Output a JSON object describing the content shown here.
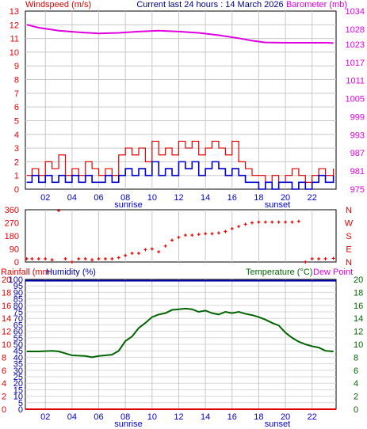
{
  "header": {
    "left": "Windspeed (m/s)",
    "center": "Current last 24 hours : 14 March 2026",
    "right": "Barometer (mb)"
  },
  "colors": {
    "wind": "#e00000",
    "gust": "#0000cc",
    "barometer": "#e000e0",
    "direction": "#e00000",
    "rain": "#e00000",
    "humidity": "#0000aa",
    "temperature": "#006400",
    "dewpoint": "#e000e0",
    "grid": "#000000"
  },
  "x_axis": {
    "ticks": [
      "02",
      "04",
      "06",
      "08",
      "10",
      "12",
      "14",
      "16",
      "18",
      "20",
      "22"
    ],
    "sunrise": "sunrise",
    "sunset": "sunset"
  },
  "panel3_header": {
    "rainfall": "Rainfall (mm",
    "humidity": "Humidity (%)",
    "temperature": "Temperature (°C)",
    "dewpoint": "Dew Point"
  },
  "chart_data": [
    {
      "type": "line",
      "title": "Windspeed (m/s) / Barometer (mb)",
      "x_range": [
        0.5,
        23.8
      ],
      "y_left": {
        "label": "Windspeed (m/s)",
        "ticks": [
          "0",
          "1",
          "2",
          "3",
          "4",
          "5",
          "6",
          "7",
          "8",
          "9",
          "10",
          "11",
          "12",
          "13"
        ],
        "ylim": [
          0,
          13
        ]
      },
      "y_right": {
        "label": "Barometer (mb)",
        "ticks": [
          "975",
          "981",
          "987",
          "993",
          "999",
          "1005",
          "1011",
          "1017",
          "1023",
          "1028",
          "1034"
        ],
        "ylim": [
          975,
          1034
        ]
      },
      "series": [
        {
          "name": "Barometer (mb)",
          "axis": "right",
          "x": [
            0.6,
            1.5,
            3,
            4.5,
            6,
            7.5,
            9,
            10.5,
            12,
            13.5,
            15,
            16.5,
            17.5,
            18.5,
            20,
            21.5,
            23,
            23.6
          ],
          "y": [
            1029.5,
            1028.5,
            1027.5,
            1027,
            1026.6,
            1026.8,
            1027.2,
            1027.5,
            1027.2,
            1026.8,
            1026,
            1025,
            1024.2,
            1023.6,
            1023.5,
            1023.5,
            1023.5,
            1023.4
          ]
        },
        {
          "name": "Windspeed",
          "axis": "left",
          "x": [
            0.6,
            1,
            1.5,
            2,
            2.5,
            3,
            3.5,
            4,
            4.5,
            5,
            5.5,
            6,
            6.5,
            7,
            7.5,
            8,
            8.5,
            9,
            9.5,
            10,
            10.5,
            11,
            11.5,
            12,
            12.5,
            13,
            13.5,
            14,
            14.5,
            15,
            15.5,
            16,
            16.5,
            17,
            17.5,
            18,
            18.5,
            19,
            19.5,
            20,
            20.5,
            21,
            21.5,
            22,
            22.5,
            23,
            23.6
          ],
          "y": [
            1,
            1.5,
            1,
            2,
            1.5,
            2.5,
            1,
            1.5,
            1,
            2,
            1.5,
            1,
            1.5,
            1,
            2.5,
            3,
            2.5,
            3,
            2,
            3.5,
            2.5,
            3,
            2.5,
            3.5,
            3,
            3.5,
            2.5,
            3,
            3.5,
            3,
            2.5,
            3.5,
            2,
            1.5,
            1,
            1,
            0.5,
            1,
            0.5,
            1,
            1.5,
            1,
            0.5,
            1,
            1.5,
            1,
            1.5
          ]
        },
        {
          "name": "Average wind",
          "axis": "left",
          "x": [
            0.6,
            1,
            1.5,
            2,
            2.5,
            3,
            3.5,
            4,
            4.5,
            5,
            5.5,
            6,
            6.5,
            7,
            7.5,
            8,
            8.5,
            9,
            9.5,
            10,
            10.5,
            11,
            11.5,
            12,
            12.5,
            13,
            13.5,
            14,
            14.5,
            15,
            15.5,
            16,
            16.5,
            17,
            17.5,
            18,
            18.5,
            19,
            19.5,
            20,
            20.5,
            21,
            21.5,
            22,
            22.5,
            23,
            23.6
          ],
          "y": [
            0.5,
            1,
            0.5,
            1,
            0.5,
            1,
            0.5,
            1,
            0.5,
            1,
            0.5,
            0.5,
            1,
            0.5,
            1,
            1.5,
            1,
            1.5,
            1,
            2,
            1,
            1.5,
            1,
            2,
            1.5,
            2,
            1,
            1.5,
            2,
            1.5,
            1,
            1.5,
            1,
            0.5,
            0.5,
            0,
            0.5,
            0,
            0.5,
            0.5,
            0,
            0.5,
            0,
            0.5,
            1,
            0.5,
            1
          ]
        }
      ]
    },
    {
      "type": "scatter",
      "title": "Wind direction",
      "x_range": [
        0.5,
        23.8
      ],
      "y_left": {
        "ticks": [
          "0",
          "90",
          "180",
          "270",
          "360"
        ],
        "ylim": [
          0,
          360
        ]
      },
      "y_right": {
        "ticks": [
          "N",
          "E",
          "S",
          "W",
          "N"
        ]
      },
      "series": [
        {
          "name": "Wind direction",
          "x": [
            0.6,
            1,
            1.5,
            2,
            2.5,
            3,
            3.5,
            4,
            4.5,
            5,
            5.5,
            6,
            6.5,
            7,
            7.5,
            8,
            8.5,
            9,
            9.5,
            10,
            10.5,
            11,
            11.5,
            12,
            12.5,
            13,
            13.5,
            14,
            14.5,
            15,
            15.5,
            16,
            16.5,
            17,
            17.5,
            18,
            18.5,
            19,
            19.5,
            20,
            20.5,
            21,
            21.5,
            22,
            22.5,
            23,
            23.6
          ],
          "y": [
            22,
            22,
            22,
            22,
            15,
            355,
            22,
            0,
            22,
            22,
            15,
            22,
            22,
            22,
            30,
            45,
            60,
            60,
            85,
            90,
            70,
            110,
            150,
            170,
            185,
            185,
            190,
            195,
            195,
            200,
            210,
            230,
            245,
            260,
            270,
            275,
            275,
            275,
            275,
            275,
            275,
            280,
            0,
            22,
            22,
            22,
            25
          ]
        }
      ]
    },
    {
      "type": "line",
      "title": "Rainfall / Humidity / Temperature",
      "x_range": [
        0.5,
        23.8
      ],
      "y_far_left": {
        "label": "Rainfall (mm",
        "ticks": [
          "0",
          "2",
          "4",
          "6",
          "8",
          "10",
          "12",
          "14",
          "16",
          "18",
          "20"
        ],
        "ylim": [
          0,
          20
        ]
      },
      "y_left": {
        "label": "Humidity (%)",
        "ticks": [
          "0",
          "5",
          "10",
          "15",
          "20",
          "25",
          "30",
          "35",
          "40",
          "45",
          "50",
          "55",
          "60",
          "65",
          "70",
          "75",
          "80",
          "85",
          "90",
          "95",
          "100"
        ],
        "ylim": [
          0,
          100
        ]
      },
      "y_right": {
        "label": "Temperature (°C)",
        "ticks": [
          "0",
          "2",
          "4",
          "6",
          "8",
          "10",
          "12",
          "14",
          "16",
          "18",
          "20"
        ],
        "ylim": [
          0,
          20
        ]
      },
      "series": [
        {
          "name": "Rainfall",
          "axis": "far_left",
          "x": [
            0.5,
            23.8
          ],
          "y": [
            0,
            0
          ]
        },
        {
          "name": "Humidity",
          "axis": "left",
          "x": [
            0.5,
            23.8
          ],
          "y": [
            99,
            99
          ]
        },
        {
          "name": "Temperature",
          "axis": "right",
          "x": [
            0.6,
            1.5,
            2.5,
            3,
            4,
            5,
            5.5,
            6,
            7,
            7.5,
            8,
            8.5,
            9,
            9.5,
            10,
            10.5,
            11,
            11.5,
            12,
            12.5,
            13,
            13.5,
            14,
            14.5,
            15,
            15.5,
            16,
            16.5,
            17,
            17.5,
            18,
            18.5,
            19,
            19.5,
            20,
            20.5,
            21,
            21.5,
            22,
            22.5,
            23,
            23.6
          ],
          "y": [
            8.9,
            8.9,
            9,
            8.9,
            8.3,
            8.2,
            8,
            8.2,
            8.4,
            9,
            10.5,
            11.2,
            12.5,
            13.3,
            14.2,
            14.6,
            14.8,
            15.3,
            15.4,
            15.5,
            15.4,
            15,
            15.2,
            14.8,
            14.6,
            15,
            14.8,
            15,
            14.7,
            14.5,
            14.2,
            13.8,
            13.3,
            12.9,
            11.8,
            11,
            10.4,
            10,
            9.7,
            9.5,
            9,
            8.9
          ]
        }
      ]
    }
  ]
}
